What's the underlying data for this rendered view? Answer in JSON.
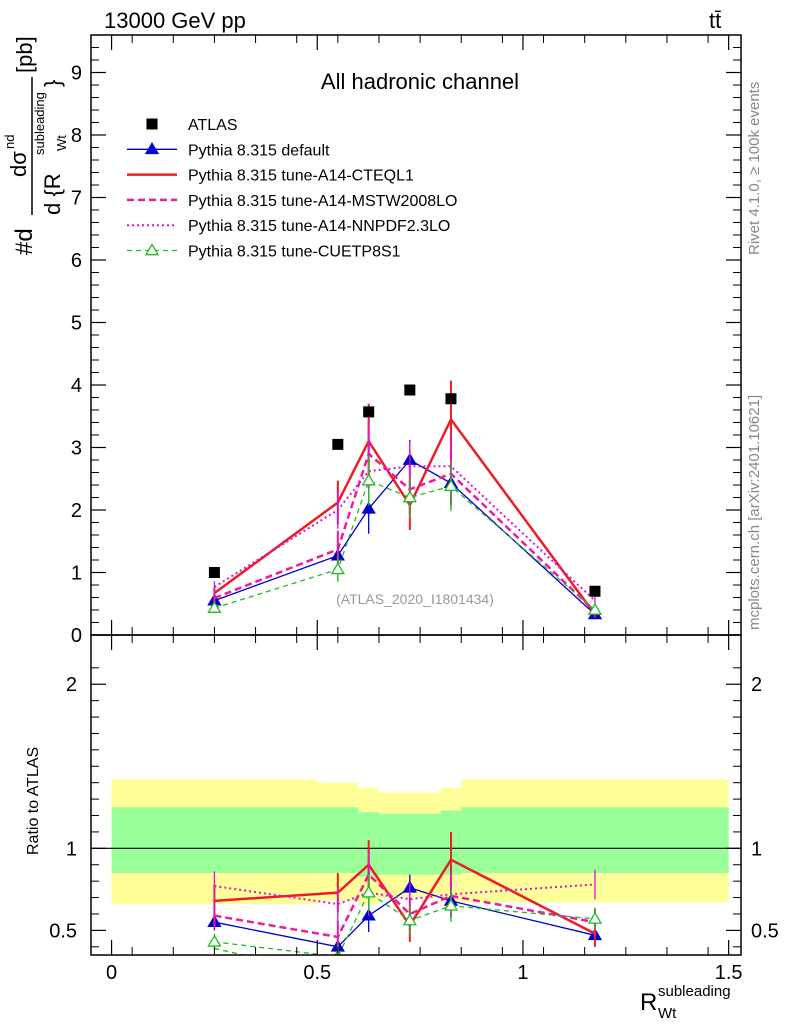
{
  "header": {
    "energy_label": "13000 GeV pp",
    "process_label": "tt̄"
  },
  "side_labels": {
    "rivet": "Rivet 4.1.0, ≥ 100k events",
    "mcplots": "mcplots.cern.ch [arXiv:2401.10621]"
  },
  "chart_data": {
    "type": "scatter",
    "title": "All hadronic channel",
    "watermark": "(ATLAS_2020_I1801434)",
    "ylabel_top": "#d dσ^{nd} / d {R^{subleading}_{Wt}} [pb]",
    "ylabel_top_parts": {
      "prefix": "#d",
      "numerator": "dσ",
      "numerator_sup": "nd",
      "denominator": "d {R",
      "denominator_sup": "subleading",
      "denominator_sub": "Wt",
      "denominator_end": "}",
      "unit": "[pb]"
    },
    "ylabel_ratio": "Ratio to ATLAS",
    "xlabel": "R^{subleading}_{Wt}",
    "xlabel_parts": {
      "base": "R",
      "sup": "subleading",
      "sub": "Wt"
    },
    "xlim": [
      -0.05,
      1.53
    ],
    "ylim": [
      0,
      9.6
    ],
    "ratio_ylim": [
      0.35,
      2.3
    ],
    "x_ticks": [
      0,
      0.5,
      1,
      1.5
    ],
    "x_tick_labels": [
      "0",
      "0.5",
      "1",
      "1.5"
    ],
    "y_ticks": [
      0,
      1,
      2,
      3,
      4,
      5,
      6,
      7,
      8,
      9
    ],
    "y_tick_labels": [
      "0",
      "1",
      "2",
      "3",
      "4",
      "5",
      "6",
      "7",
      "8",
      "9"
    ],
    "ratio_y_ticks": [
      0.5,
      1,
      2
    ],
    "ratio_y_tick_labels": [
      "0.5",
      "1",
      "2"
    ],
    "x": [
      0.25,
      0.55,
      0.625,
      0.725,
      0.825,
      1.175
    ],
    "data": {
      "name": "ATLAS",
      "values": [
        1.0,
        3.05,
        3.57,
        3.92,
        3.78,
        0.7
      ]
    },
    "uncertainty_bins": [
      {
        "x": [
          0.0,
          0.5
        ],
        "inner": [
          0.85,
          1.25
        ],
        "outer": [
          0.66,
          1.42
        ]
      },
      {
        "x": [
          0.5,
          0.6
        ],
        "inner": [
          0.85,
          1.25
        ],
        "outer": [
          0.68,
          1.4
        ]
      },
      {
        "x": [
          0.6,
          0.65
        ],
        "inner": [
          0.83,
          1.22
        ],
        "outer": [
          0.66,
          1.37
        ]
      },
      {
        "x": [
          0.65,
          0.8
        ],
        "inner": [
          0.84,
          1.21
        ],
        "outer": [
          0.7,
          1.34
        ]
      },
      {
        "x": [
          0.8,
          0.85
        ],
        "inner": [
          0.84,
          1.23
        ],
        "outer": [
          0.68,
          1.37
        ]
      },
      {
        "x": [
          0.85,
          1.5
        ],
        "inner": [
          0.85,
          1.25
        ],
        "outer": [
          0.67,
          1.42
        ]
      }
    ],
    "series": [
      {
        "name": "Pythia 8.315 default",
        "color": "#0000cc",
        "dash": "",
        "width": 1.3,
        "marker": "triangle",
        "values": [
          0.55,
          1.27,
          2.02,
          2.8,
          2.43,
          0.33
        ],
        "errors": [
          0.05,
          0.2,
          0.4,
          0.32,
          0.4,
          0.05
        ]
      },
      {
        "name": "Pythia 8.315 tune-A14-CTEQL1",
        "color": "#ee1c24",
        "dash": "",
        "width": 2.5,
        "marker": "none",
        "values": [
          0.67,
          2.12,
          3.1,
          2.08,
          3.45,
          0.33
        ],
        "errors": [
          0.1,
          0.35,
          0.6,
          0.4,
          0.62,
          0.05
        ]
      },
      {
        "name": "Pythia 8.315 tune-A14-MSTW2008LO",
        "color": "#ee1c9c",
        "dash": "7,4",
        "width": 2.5,
        "marker": "none",
        "values": [
          0.59,
          1.37,
          2.9,
          2.33,
          2.58,
          0.38
        ],
        "errors": [
          0.08,
          0.3,
          0.55,
          0.4,
          0.5,
          0.05
        ]
      },
      {
        "name": "Pythia 8.315 tune-A14-NNPDF2.3LO",
        "color": "#dd11dd",
        "dash": "2,3",
        "width": 2,
        "marker": "none",
        "values": [
          0.77,
          2.0,
          2.62,
          2.7,
          2.7,
          0.55
        ],
        "errors": [
          0.09,
          0.3,
          0.5,
          0.4,
          0.5,
          0.06
        ]
      },
      {
        "name": "Pythia 8.315 tune-CUETP8S1",
        "color": "#22bb22",
        "dash": "5,4",
        "width": 1.3,
        "marker": "open-triangle",
        "values": [
          0.43,
          1.05,
          2.47,
          2.2,
          2.38,
          0.4
        ],
        "errors": [
          0.05,
          0.2,
          0.4,
          0.32,
          0.4,
          0.05
        ]
      }
    ],
    "ratio_series": [
      {
        "name": "Pythia 8.315 default",
        "values": [
          0.55,
          0.4,
          0.59,
          0.76,
          0.68,
          0.47
        ],
        "errors": [
          0.05,
          0.06,
          0.1,
          0.08,
          0.1,
          0.06
        ]
      },
      {
        "name": "Pythia 8.315 tune-A14-CTEQL1",
        "values": [
          0.68,
          0.73,
          0.9,
          0.53,
          0.93,
          0.48
        ],
        "errors": [
          0.1,
          0.12,
          0.15,
          0.1,
          0.17,
          0.08
        ]
      },
      {
        "name": "Pythia 8.315 tune-A14-MSTW2008LO",
        "values": [
          0.59,
          0.46,
          0.84,
          0.6,
          0.71,
          0.55
        ],
        "errors": [
          0.08,
          0.1,
          0.15,
          0.1,
          0.13,
          0.08
        ]
      },
      {
        "name": "Pythia 8.315 tune-A14-NNPDF2.3LO",
        "values": [
          0.77,
          0.66,
          0.73,
          0.69,
          0.72,
          0.78
        ],
        "errors": [
          0.09,
          0.1,
          0.14,
          0.1,
          0.13,
          0.09
        ]
      },
      {
        "name": "Pythia 8.315 tune-CUETP8S1",
        "values": [
          0.43,
          0.34,
          0.73,
          0.56,
          0.65,
          0.57
        ],
        "errors": [
          0.05,
          0.07,
          0.11,
          0.09,
          0.1,
          0.07
        ]
      }
    ],
    "ratio_pre_range": {
      "name": "Pythia 8.315 tune-CUETP8S1",
      "x_end": 0.32,
      "y_end": 0.35
    }
  }
}
